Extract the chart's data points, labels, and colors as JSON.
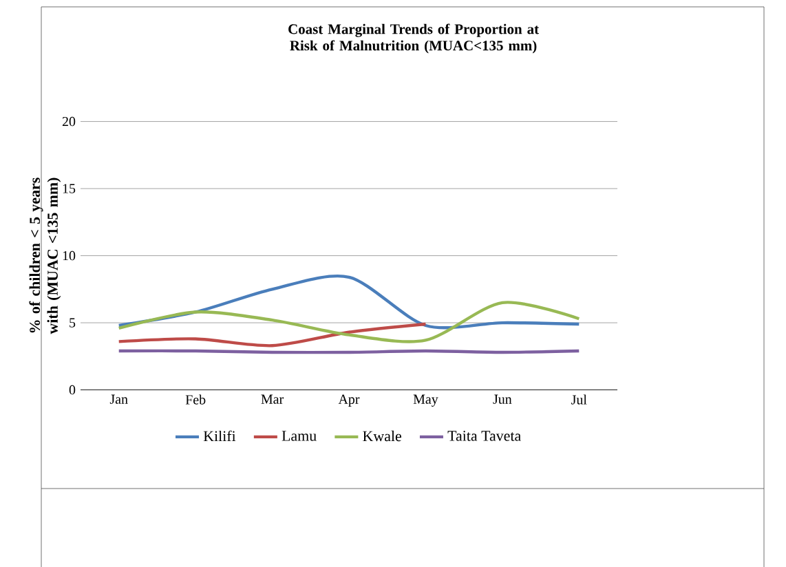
{
  "chart_data": {
    "type": "line",
    "title": "Coast Marginal Trends of Proportion at Risk of Malnutrition (MUAC<135 mm)",
    "ylabel": "% of children < 5 years with (MUAC <135 mm)",
    "categories": [
      "Jan",
      "Feb",
      "Mar",
      "Apr",
      "May",
      "Jun",
      "Jul"
    ],
    "series": [
      {
        "name": "Kilifi",
        "color": "#4a7ebb",
        "values": [
          4.8,
          5.8,
          7.5,
          8.4,
          4.8,
          5.0,
          4.9
        ]
      },
      {
        "name": "Lamu",
        "color": "#be4b48",
        "values": [
          3.6,
          3.8,
          3.3,
          4.3,
          4.9,
          null,
          null
        ]
      },
      {
        "name": "Kwale",
        "color": "#98b954",
        "values": [
          4.6,
          5.8,
          5.2,
          4.1,
          3.7,
          6.5,
          5.3
        ]
      },
      {
        "name": "Taita Taveta",
        "color": "#7d60a0",
        "values": [
          2.9,
          2.9,
          2.8,
          2.8,
          2.9,
          2.8,
          2.9
        ]
      }
    ],
    "ylim": [
      0,
      20
    ],
    "yticks": [
      0,
      5,
      10,
      15,
      20
    ],
    "grid": "y",
    "legend": "bottom",
    "marker": "none",
    "line_style": "solid"
  }
}
